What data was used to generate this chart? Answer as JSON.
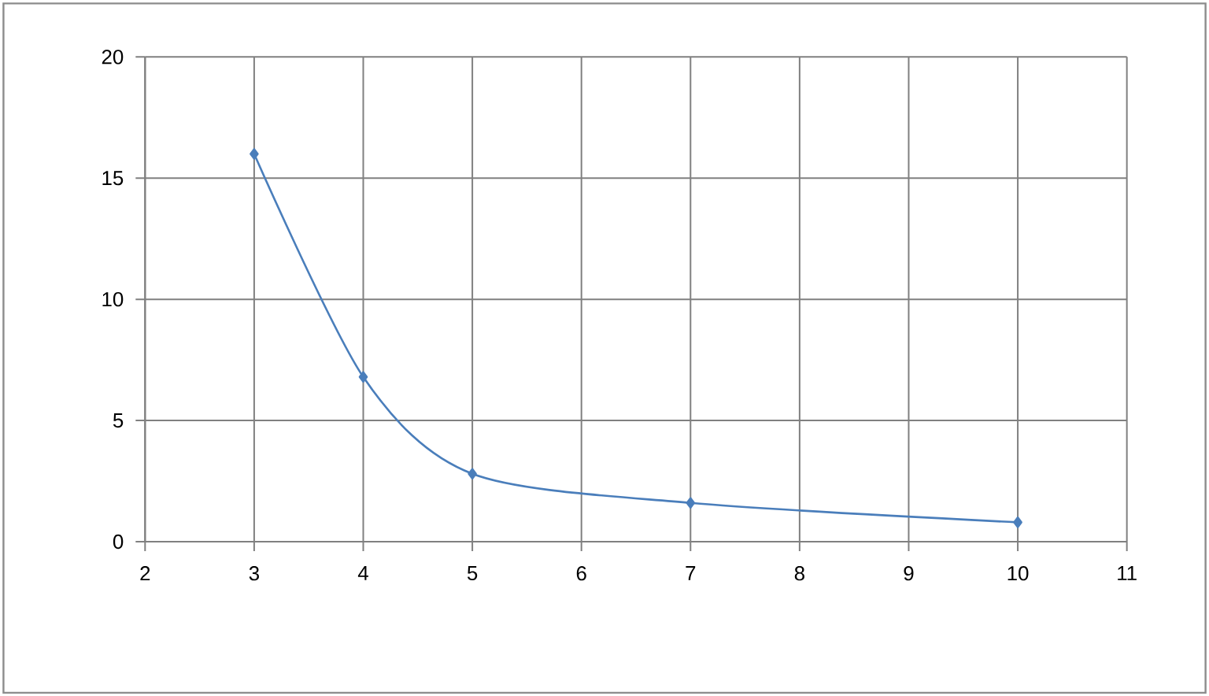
{
  "chart_data": {
    "type": "line",
    "x": [
      3,
      4,
      5,
      7,
      10
    ],
    "series": [
      {
        "color": "#4a7ebb",
        "values": [
          16,
          6.8,
          2.8,
          1.6,
          0.8
        ]
      }
    ],
    "xlim": [
      2,
      11
    ],
    "xticks": [
      2,
      3,
      4,
      5,
      6,
      7,
      8,
      9,
      10,
      11
    ],
    "ylim": [
      0,
      20
    ],
    "yticks": [
      0,
      5,
      10,
      15,
      20
    ],
    "grid": true,
    "marker": "diamond",
    "line_style": "solid"
  }
}
